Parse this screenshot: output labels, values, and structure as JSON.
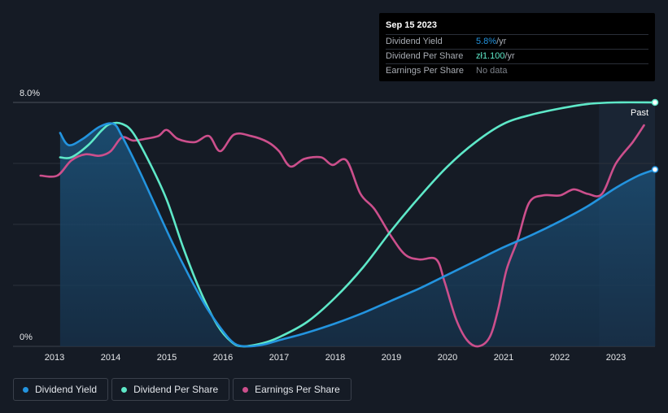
{
  "chart_data": {
    "type": "line",
    "x_axis_ticks": [
      "2013",
      "2014",
      "2015",
      "2016",
      "2017",
      "2018",
      "2019",
      "2020",
      "2021",
      "2022",
      "2023"
    ],
    "y_axis_labels": [
      "8.0%",
      "0%"
    ],
    "ylim": [
      0,
      8.0
    ],
    "grid": true,
    "past_label": "Past",
    "series": [
      {
        "name": "Dividend Yield",
        "color": "#2394df",
        "filled": true,
        "points": [
          [
            2013.1,
            7.0
          ],
          [
            2013.25,
            6.6
          ],
          [
            2013.5,
            6.8
          ],
          [
            2013.8,
            7.2
          ],
          [
            2014.05,
            7.3
          ],
          [
            2014.2,
            6.9
          ],
          [
            2014.5,
            5.8
          ],
          [
            2014.8,
            4.6
          ],
          [
            2015.1,
            3.4
          ],
          [
            2015.4,
            2.3
          ],
          [
            2015.7,
            1.3
          ],
          [
            2016.0,
            0.5
          ],
          [
            2016.2,
            0.1
          ],
          [
            2016.4,
            0.0
          ],
          [
            2016.7,
            0.05
          ],
          [
            2017.0,
            0.2
          ],
          [
            2017.5,
            0.45
          ],
          [
            2018.0,
            0.75
          ],
          [
            2018.5,
            1.1
          ],
          [
            2019.0,
            1.5
          ],
          [
            2019.5,
            1.9
          ],
          [
            2020.0,
            2.35
          ],
          [
            2020.5,
            2.8
          ],
          [
            2021.0,
            3.25
          ],
          [
            2021.5,
            3.65
          ],
          [
            2022.0,
            4.1
          ],
          [
            2022.5,
            4.6
          ],
          [
            2023.0,
            5.2
          ],
          [
            2023.4,
            5.6
          ],
          [
            2023.7,
            5.8
          ]
        ]
      },
      {
        "name": "Dividend Per Share",
        "color": "#5ee8c8",
        "filled": false,
        "points": [
          [
            2013.1,
            6.2
          ],
          [
            2013.3,
            6.2
          ],
          [
            2013.6,
            6.6
          ],
          [
            2013.85,
            7.1
          ],
          [
            2014.0,
            7.3
          ],
          [
            2014.2,
            7.3
          ],
          [
            2014.4,
            7.0
          ],
          [
            2014.7,
            6.0
          ],
          [
            2015.0,
            4.8
          ],
          [
            2015.3,
            3.2
          ],
          [
            2015.6,
            1.8
          ],
          [
            2015.9,
            0.7
          ],
          [
            2016.15,
            0.15
          ],
          [
            2016.35,
            0.0
          ],
          [
            2016.7,
            0.1
          ],
          [
            2017.0,
            0.3
          ],
          [
            2017.5,
            0.8
          ],
          [
            2018.0,
            1.6
          ],
          [
            2018.5,
            2.6
          ],
          [
            2019.0,
            3.8
          ],
          [
            2019.5,
            4.9
          ],
          [
            2020.0,
            5.9
          ],
          [
            2020.5,
            6.7
          ],
          [
            2021.0,
            7.3
          ],
          [
            2021.5,
            7.6
          ],
          [
            2022.0,
            7.8
          ],
          [
            2022.5,
            7.95
          ],
          [
            2023.0,
            8.0
          ],
          [
            2023.7,
            8.0
          ]
        ]
      },
      {
        "name": "Earnings Per Share",
        "color": "#cc4f8c",
        "filled": false,
        "points": [
          [
            2012.75,
            5.6
          ],
          [
            2013.05,
            5.6
          ],
          [
            2013.3,
            6.1
          ],
          [
            2013.55,
            6.3
          ],
          [
            2013.8,
            6.25
          ],
          [
            2014.0,
            6.4
          ],
          [
            2014.2,
            6.85
          ],
          [
            2014.4,
            6.75
          ],
          [
            2014.6,
            6.8
          ],
          [
            2014.85,
            6.9
          ],
          [
            2015.0,
            7.1
          ],
          [
            2015.2,
            6.8
          ],
          [
            2015.5,
            6.7
          ],
          [
            2015.75,
            6.9
          ],
          [
            2015.95,
            6.4
          ],
          [
            2016.2,
            6.95
          ],
          [
            2016.5,
            6.9
          ],
          [
            2016.8,
            6.7
          ],
          [
            2017.0,
            6.4
          ],
          [
            2017.2,
            5.9
          ],
          [
            2017.45,
            6.15
          ],
          [
            2017.75,
            6.2
          ],
          [
            2017.95,
            5.95
          ],
          [
            2018.2,
            6.1
          ],
          [
            2018.45,
            5.0
          ],
          [
            2018.7,
            4.5
          ],
          [
            2019.0,
            3.6
          ],
          [
            2019.25,
            3.0
          ],
          [
            2019.5,
            2.85
          ],
          [
            2019.8,
            2.85
          ],
          [
            2019.95,
            2.1
          ],
          [
            2020.15,
            0.9
          ],
          [
            2020.35,
            0.2
          ],
          [
            2020.55,
            0.0
          ],
          [
            2020.75,
            0.3
          ],
          [
            2020.9,
            1.2
          ],
          [
            2021.05,
            2.5
          ],
          [
            2021.25,
            3.5
          ],
          [
            2021.45,
            4.7
          ],
          [
            2021.7,
            4.95
          ],
          [
            2022.0,
            4.95
          ],
          [
            2022.25,
            5.15
          ],
          [
            2022.5,
            5.0
          ],
          [
            2022.75,
            5.0
          ],
          [
            2023.0,
            6.0
          ],
          [
            2023.3,
            6.7
          ],
          [
            2023.5,
            7.25
          ]
        ]
      }
    ],
    "end_markers": [
      {
        "series": "Dividend Per Share",
        "value": 8.0
      },
      {
        "series": "Dividend Yield",
        "value": 5.8
      }
    ]
  },
  "tooltip": {
    "date": "Sep 15 2023",
    "rows": [
      {
        "label": "Dividend Yield",
        "value": "5.8%",
        "unit": " /yr",
        "color": "#2394df"
      },
      {
        "label": "Dividend Per Share",
        "value": "zł1.100",
        "unit": " /yr",
        "color": "#5ee8c8"
      },
      {
        "label": "Earnings Per Share",
        "value": "No data",
        "unit": "",
        "color": "#7d828a"
      }
    ]
  },
  "legend": [
    {
      "label": "Dividend Yield",
      "color": "#2394df"
    },
    {
      "label": "Dividend Per Share",
      "color": "#5ee8c8"
    },
    {
      "label": "Earnings Per Share",
      "color": "#cc4f8c"
    }
  ]
}
